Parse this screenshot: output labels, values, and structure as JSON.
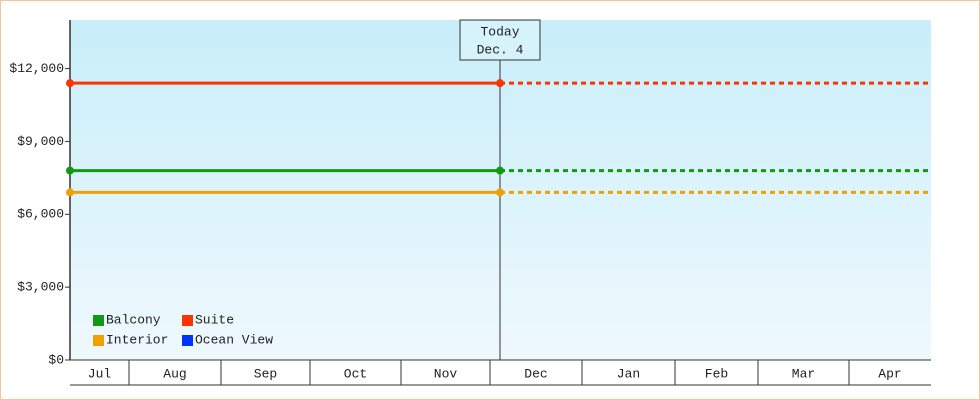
{
  "chart_data": {
    "type": "line",
    "categories": [
      "Jul",
      "Aug",
      "Sep",
      "Oct",
      "Nov",
      "Dec",
      "Jan",
      "Feb",
      "Mar",
      "Apr"
    ],
    "series": [
      {
        "name": "Balcony",
        "color": "#119911",
        "value": 7800
      },
      {
        "name": "Suite",
        "color": "#ff3300",
        "value": 11400
      },
      {
        "name": "Interior",
        "color": "#f0a000",
        "value": 6900
      },
      {
        "name": "Ocean View",
        "color": "#0033ff",
        "value": null
      }
    ],
    "annotation": {
      "label": "Today",
      "date": "Dec. 4"
    },
    "ylim": [
      0,
      14000
    ],
    "yticks": [
      {
        "value": 0,
        "label": "$0"
      },
      {
        "value": 3000,
        "label": "$3,000"
      },
      {
        "value": 6000,
        "label": "$6,000"
      },
      {
        "value": 9000,
        "label": "$9,000"
      },
      {
        "value": 12000,
        "label": "$12,000"
      }
    ],
    "grid": false
  }
}
